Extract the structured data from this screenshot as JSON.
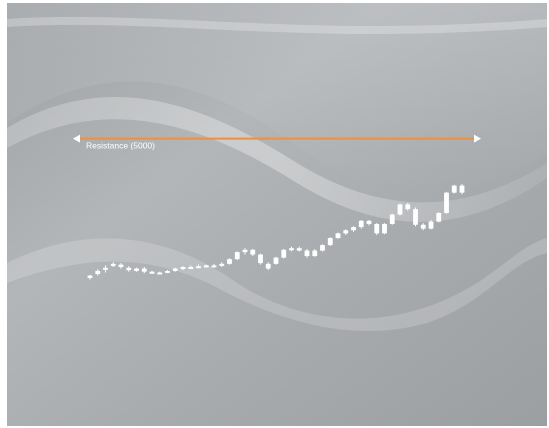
{
  "colors": {
    "background": "#a7aaad",
    "candle": "#ffffff",
    "resistance_line": "#f0913a",
    "arrowheads": "#ffffff"
  },
  "chart_data": {
    "type": "candlestick",
    "title": "",
    "xlabel": "",
    "ylabel": "",
    "grid": false,
    "legend": "none",
    "ylim": [
      2900,
      5200
    ],
    "annotations": [
      {
        "type": "horizontal-line",
        "y": 5000,
        "label": "Resistance (5000)",
        "arrows": "both"
      }
    ],
    "candles": [
      [
        3220,
        3260,
        3200,
        3250
      ],
      [
        3270,
        3330,
        3250,
        3310
      ],
      [
        3330,
        3380,
        3290,
        3350
      ],
      [
        3380,
        3420,
        3360,
        3400
      ],
      [
        3390,
        3410,
        3340,
        3360
      ],
      [
        3350,
        3370,
        3300,
        3320
      ],
      [
        3310,
        3350,
        3300,
        3340
      ],
      [
        3340,
        3360,
        3280,
        3300
      ],
      [
        3300,
        3310,
        3270,
        3280
      ],
      [
        3280,
        3300,
        3270,
        3290
      ],
      [
        3290,
        3320,
        3280,
        3310
      ],
      [
        3310,
        3350,
        3300,
        3340
      ],
      [
        3340,
        3370,
        3320,
        3360
      ],
      [
        3360,
        3380,
        3340,
        3360
      ],
      [
        3360,
        3390,
        3350,
        3370
      ],
      [
        3370,
        3390,
        3360,
        3380
      ],
      [
        3380,
        3400,
        3370,
        3380
      ],
      [
        3380,
        3420,
        3360,
        3400
      ],
      [
        3400,
        3470,
        3390,
        3460
      ],
      [
        3460,
        3560,
        3450,
        3550
      ],
      [
        3550,
        3600,
        3520,
        3580
      ],
      [
        3580,
        3590,
        3500,
        3520
      ],
      [
        3520,
        3530,
        3390,
        3410
      ],
      [
        3340,
        3420,
        3320,
        3400
      ],
      [
        3400,
        3490,
        3390,
        3480
      ],
      [
        3480,
        3590,
        3470,
        3580
      ],
      [
        3580,
        3620,
        3560,
        3600
      ],
      [
        3600,
        3620,
        3560,
        3570
      ],
      [
        3570,
        3590,
        3480,
        3500
      ],
      [
        3500,
        3590,
        3490,
        3570
      ],
      [
        3570,
        3650,
        3560,
        3640
      ],
      [
        3640,
        3740,
        3630,
        3730
      ],
      [
        3730,
        3800,
        3720,
        3790
      ],
      [
        3790,
        3840,
        3770,
        3830
      ],
      [
        3830,
        3880,
        3810,
        3870
      ],
      [
        3870,
        3960,
        3850,
        3950
      ],
      [
        3950,
        3960,
        3890,
        3910
      ],
      [
        3910,
        3920,
        3770,
        3790
      ],
      [
        3790,
        3920,
        3780,
        3910
      ],
      [
        3910,
        4040,
        3900,
        4030
      ],
      [
        4030,
        4170,
        4020,
        4160
      ],
      [
        4160,
        4180,
        4080,
        4100
      ],
      [
        4100,
        4120,
        3880,
        3900
      ],
      [
        3900,
        3920,
        3830,
        3850
      ],
      [
        3850,
        3960,
        3840,
        3940
      ],
      [
        3940,
        4060,
        3930,
        4050
      ],
      [
        4050,
        4320,
        4040,
        4310
      ],
      [
        4310,
        4410,
        4300,
        4400
      ],
      [
        4400,
        4420,
        4290,
        4310
      ]
    ]
  }
}
